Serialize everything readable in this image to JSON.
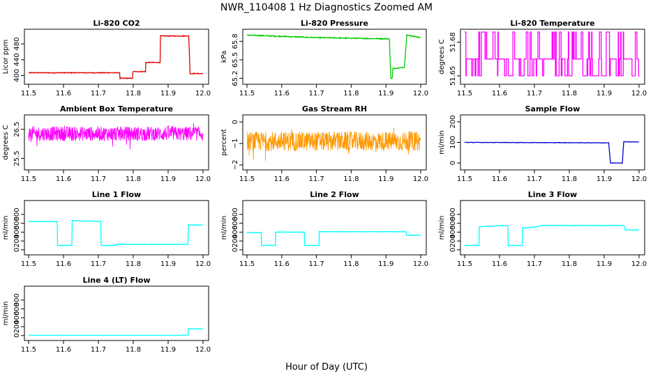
{
  "chart_data": {
    "title": "NWR_110408  1 Hz Diagnostics Zoomed AM",
    "xlabel": "Hour of Day (UTC)",
    "type": "line",
    "panels": [
      {
        "title": "Li-820 CO2",
        "ylabel": "Licor ppm",
        "color": "#e00000",
        "xlim": [
          11.5,
          12.0
        ],
        "ylim": [
          385,
          510
        ],
        "xticks": [
          "11.5",
          "11.6",
          "11.7",
          "11.8",
          "11.9",
          "12.0"
        ],
        "yticks": [
          {
            "v": 400,
            "label": "400"
          },
          {
            "v": 440,
            "label": "440"
          },
          {
            "v": 480,
            "label": "480"
          }
        ],
        "noise": 1.0,
        "series": [
          {
            "x": 11.5,
            "y": 407
          },
          {
            "x": 11.761,
            "y": 407
          },
          {
            "x": 11.762,
            "y": 393
          },
          {
            "x": 11.798,
            "y": 393
          },
          {
            "x": 11.799,
            "y": 410
          },
          {
            "x": 11.835,
            "y": 410
          },
          {
            "x": 11.836,
            "y": 433
          },
          {
            "x": 11.877,
            "y": 433
          },
          {
            "x": 11.878,
            "y": 500
          },
          {
            "x": 11.959,
            "y": 500
          },
          {
            "x": 11.963,
            "y": 405
          },
          {
            "x": 12.0,
            "y": 405
          }
        ]
      },
      {
        "title": "Li-820 Pressure",
        "ylabel": "kPa",
        "color": "#00cc00",
        "xlim": [
          11.5,
          12.0
        ],
        "ylim": [
          65.15,
          65.95
        ],
        "xticks": [
          "11.5",
          "11.6",
          "11.7",
          "11.8",
          "11.9",
          "12.0"
        ],
        "yticks": [
          {
            "v": 65.2,
            "label": "65.2"
          },
          {
            "v": 65.5,
            "label": "65.5"
          },
          {
            "v": 65.8,
            "label": "65.8"
          }
        ],
        "noise": 0.008,
        "series": [
          {
            "x": 11.5,
            "y": 65.9
          },
          {
            "x": 11.6,
            "y": 65.88
          },
          {
            "x": 11.7,
            "y": 65.86
          },
          {
            "x": 11.8,
            "y": 65.85
          },
          {
            "x": 11.91,
            "y": 65.84
          },
          {
            "x": 11.914,
            "y": 65.2
          },
          {
            "x": 11.918,
            "y": 65.2
          },
          {
            "x": 11.92,
            "y": 65.36
          },
          {
            "x": 11.953,
            "y": 65.38
          },
          {
            "x": 11.96,
            "y": 65.9
          },
          {
            "x": 12.0,
            "y": 65.86
          }
        ]
      },
      {
        "title": "Li-820 Temperature",
        "ylabel": "degrees C",
        "color": "#ff00ff",
        "xlim": [
          11.5,
          12.0
        ],
        "ylim": [
          51.645,
          51.689
        ],
        "xticks": [
          "11.5",
          "11.6",
          "11.7",
          "11.8",
          "11.9",
          "12.0"
        ],
        "yticks": [
          {
            "v": 51.65,
            "label": "51.65"
          },
          {
            "v": 51.68,
            "label": "51.68"
          }
        ],
        "mode": "levels",
        "levels": [
          51.65,
          51.665,
          51.689
        ],
        "weights": [
          0.35,
          0.45,
          0.2
        ]
      },
      {
        "title": "Ambient Box Temperature",
        "ylabel": "degrees C",
        "color": "#ff00ff",
        "xlim": [
          11.5,
          12.0
        ],
        "ylim": [
          25.2,
          26.9
        ],
        "xticks": [
          "11.5",
          "11.6",
          "11.7",
          "11.8",
          "11.9",
          "12.0"
        ],
        "yticks": [
          {
            "v": 25.5,
            "label": "25.5"
          },
          {
            "v": 26.5,
            "label": "26.5"
          }
        ],
        "mode": "noise",
        "center": 26.35,
        "spread": 0.25,
        "series": [
          {
            "x": 11.5,
            "y": 26.35
          },
          {
            "x": 12.0,
            "y": 26.35
          }
        ]
      },
      {
        "title": "Gas Stream RH",
        "ylabel": "percent",
        "color": "#ff9900",
        "xlim": [
          11.5,
          12.0
        ],
        "ylim": [
          -2.1,
          0.2
        ],
        "xticks": [
          "11.5",
          "11.6",
          "11.7",
          "11.8",
          "11.9",
          "12.0"
        ],
        "yticks": [
          {
            "v": -2,
            "label": "−2"
          },
          {
            "v": -1,
            "label": "−1"
          },
          {
            "v": 0,
            "label": "0"
          }
        ],
        "mode": "noise",
        "center": -0.9,
        "spread": 0.45,
        "series": [
          {
            "x": 11.5,
            "y": -0.9
          },
          {
            "x": 12.0,
            "y": -0.9
          }
        ]
      },
      {
        "title": "Sample Flow",
        "ylabel": "ml/min",
        "color": "#0000cc",
        "xlim": [
          11.5,
          12.0
        ],
        "ylim": [
          -20,
          220
        ],
        "xticks": [
          "11.5",
          "11.6",
          "11.7",
          "11.8",
          "11.9",
          "12.0"
        ],
        "yticks": [
          {
            "v": 0,
            "label": "0"
          },
          {
            "v": 100,
            "label": "100"
          },
          {
            "v": 200,
            "label": "200"
          }
        ],
        "noise": 1.0,
        "series": [
          {
            "x": 11.5,
            "y": 100
          },
          {
            "x": 11.9,
            "y": 98
          },
          {
            "x": 11.913,
            "y": 98
          },
          {
            "x": 11.918,
            "y": 0
          },
          {
            "x": 11.952,
            "y": 0
          },
          {
            "x": 11.956,
            "y": 103
          },
          {
            "x": 12.0,
            "y": 102
          }
        ]
      },
      {
        "title": "Line 1 Flow",
        "ylabel": "ml/min",
        "color": "#00ffff",
        "xlim": [
          11.5,
          12.0
        ],
        "ylim": [
          -50,
          1050
        ],
        "xticks": [
          "11.5",
          "11.6",
          "11.7",
          "11.8",
          "11.9",
          "12.0"
        ],
        "yticks": [
          {
            "v": 0,
            "label": "0"
          },
          {
            "v": 200,
            "label": "200"
          },
          {
            "v": 400,
            "label": "400"
          },
          {
            "v": 600,
            "label": "600"
          },
          {
            "v": 800,
            "label": "800"
          }
        ],
        "noise": 6,
        "series": [
          {
            "x": 11.5,
            "y": 640
          },
          {
            "x": 11.582,
            "y": 640
          },
          {
            "x": 11.583,
            "y": 100
          },
          {
            "x": 11.624,
            "y": 100
          },
          {
            "x": 11.625,
            "y": 660
          },
          {
            "x": 11.707,
            "y": 640
          },
          {
            "x": 11.708,
            "y": 100
          },
          {
            "x": 11.75,
            "y": 100
          },
          {
            "x": 11.751,
            "y": 125
          },
          {
            "x": 11.957,
            "y": 125
          },
          {
            "x": 11.958,
            "y": 560
          },
          {
            "x": 12.0,
            "y": 560
          }
        ]
      },
      {
        "title": "Line 2 Flow",
        "ylabel": "ml/min",
        "color": "#00ffff",
        "xlim": [
          11.5,
          12.0
        ],
        "ylim": [
          -50,
          1050
        ],
        "xticks": [
          "11.5",
          "11.6",
          "11.7",
          "11.8",
          "11.9",
          "12.0"
        ],
        "yticks": [
          {
            "v": 0,
            "label": "0"
          },
          {
            "v": 200,
            "label": "200"
          },
          {
            "v": 400,
            "label": "400"
          },
          {
            "v": 600,
            "label": "600"
          },
          {
            "v": 800,
            "label": "800"
          }
        ],
        "noise": 6,
        "series": [
          {
            "x": 11.5,
            "y": 390
          },
          {
            "x": 11.541,
            "y": 390
          },
          {
            "x": 11.542,
            "y": 100
          },
          {
            "x": 11.582,
            "y": 100
          },
          {
            "x": 11.583,
            "y": 400
          },
          {
            "x": 11.665,
            "y": 400
          },
          {
            "x": 11.666,
            "y": 100
          },
          {
            "x": 11.707,
            "y": 100
          },
          {
            "x": 11.708,
            "y": 410
          },
          {
            "x": 11.958,
            "y": 410
          },
          {
            "x": 11.96,
            "y": 330
          },
          {
            "x": 12.0,
            "y": 330
          }
        ]
      },
      {
        "title": "Line 3 Flow",
        "ylabel": "ml/min",
        "color": "#00ffff",
        "xlim": [
          11.5,
          12.0
        ],
        "ylim": [
          -50,
          1050
        ],
        "xticks": [
          "11.5",
          "11.6",
          "11.7",
          "11.8",
          "11.9",
          "12.0"
        ],
        "yticks": [
          {
            "v": 0,
            "label": "0"
          },
          {
            "v": 200,
            "label": "200"
          },
          {
            "v": 400,
            "label": "400"
          },
          {
            "v": 600,
            "label": "600"
          },
          {
            "v": 800,
            "label": "800"
          }
        ],
        "noise": 6,
        "series": [
          {
            "x": 11.5,
            "y": 100
          },
          {
            "x": 11.541,
            "y": 100
          },
          {
            "x": 11.542,
            "y": 520
          },
          {
            "x": 11.583,
            "y": 540
          },
          {
            "x": 11.624,
            "y": 550
          },
          {
            "x": 11.625,
            "y": 100
          },
          {
            "x": 11.665,
            "y": 100
          },
          {
            "x": 11.666,
            "y": 490
          },
          {
            "x": 11.707,
            "y": 520
          },
          {
            "x": 11.72,
            "y": 550
          },
          {
            "x": 11.957,
            "y": 550
          },
          {
            "x": 11.96,
            "y": 450
          },
          {
            "x": 12.0,
            "y": 450
          }
        ]
      },
      {
        "title": "Line 4 (LT) Flow",
        "ylabel": "ml/min",
        "color": "#00ffff",
        "xlim": [
          11.5,
          12.0
        ],
        "ylim": [
          -50,
          1050
        ],
        "xticks": [
          "11.5",
          "11.6",
          "11.7",
          "11.8",
          "11.9",
          "12.0"
        ],
        "yticks": [
          {
            "v": 0,
            "label": "0"
          },
          {
            "v": 200,
            "label": "200"
          },
          {
            "v": 400,
            "label": "400"
          },
          {
            "v": 600,
            "label": "600"
          },
          {
            "v": 800,
            "label": "800"
          }
        ],
        "noise": 2,
        "series": [
          {
            "x": 11.5,
            "y": 5
          },
          {
            "x": 11.957,
            "y": 5
          },
          {
            "x": 11.958,
            "y": 150
          },
          {
            "x": 12.0,
            "y": 150
          }
        ]
      }
    ]
  }
}
